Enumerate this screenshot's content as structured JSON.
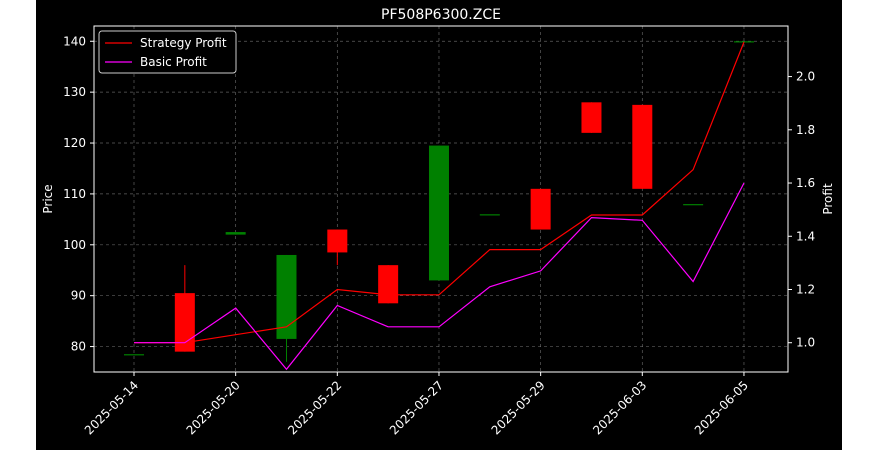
{
  "chart_data": {
    "type": "candlestick",
    "title": "PF508P6300.ZCE",
    "ylabel_left": "Price",
    "ylabel_right": "Profit",
    "xlabel": "",
    "ylim_left": [
      75,
      143
    ],
    "ylim_right": [
      0.89,
      2.19
    ],
    "yticks_left": [
      80,
      90,
      100,
      110,
      120,
      130,
      140
    ],
    "yticks_right": [
      "1.0",
      "1.2",
      "1.4",
      "1.6",
      "1.8",
      "2.0"
    ],
    "xtick_labels": [
      {
        "index": 0,
        "label": "2025-05-14"
      },
      {
        "index": 2,
        "label": "2025-05-20"
      },
      {
        "index": 4,
        "label": "2025-05-22"
      },
      {
        "index": 6,
        "label": "2025-05-27"
      },
      {
        "index": 8,
        "label": "2025-05-29"
      },
      {
        "index": 10,
        "label": "2025-06-03"
      },
      {
        "index": 12,
        "label": "2025-06-05"
      }
    ],
    "grid": true,
    "legend_position": "upper-left",
    "colors": {
      "up": "#008000",
      "down": "#ff0000",
      "strategy": "#ff0000",
      "basic": "#ff00ff",
      "grid": "#888888"
    },
    "candles": [
      {
        "open": 78.5,
        "high": 78.5,
        "low": 78.5,
        "close": 78.5
      },
      {
        "open": 90.5,
        "high": 96.0,
        "low": 79.0,
        "close": 79.0
      },
      {
        "open": 102.0,
        "high": 102.5,
        "low": 102.0,
        "close": 102.5
      },
      {
        "open": 81.5,
        "high": 98.0,
        "low": 77.0,
        "close": 98.0
      },
      {
        "open": 103.0,
        "high": 103.0,
        "low": 96.0,
        "close": 98.5
      },
      {
        "open": 96.0,
        "high": 96.0,
        "low": 88.5,
        "close": 88.5
      },
      {
        "open": 93.0,
        "high": 119.5,
        "low": 93.0,
        "close": 119.5
      },
      {
        "open": 106.0,
        "high": 106.0,
        "low": 106.0,
        "close": 106.0
      },
      {
        "open": 111.0,
        "high": 111.0,
        "low": 103.0,
        "close": 103.0
      },
      {
        "open": 128.0,
        "high": 128.0,
        "low": 122.0,
        "close": 122.0
      },
      {
        "open": 127.5,
        "high": 127.5,
        "low": 111.0,
        "close": 111.0
      },
      {
        "open": 108.0,
        "high": 108.0,
        "low": 108.0,
        "close": 108.0
      },
      {
        "open": 140.0,
        "high": 140.0,
        "low": 140.0,
        "close": 140.0
      }
    ],
    "series": [
      {
        "name": "Strategy Profit",
        "color": "#ff0000",
        "values": [
          1.0,
          1.0,
          1.03,
          1.06,
          1.2,
          1.18,
          1.18,
          1.35,
          1.35,
          1.48,
          1.48,
          1.65,
          2.13
        ]
      },
      {
        "name": "Basic Profit",
        "color": "#ff00ff",
        "values": [
          1.0,
          1.0,
          1.13,
          0.9,
          1.14,
          1.06,
          1.06,
          1.21,
          1.27,
          1.47,
          1.46,
          1.23,
          1.6
        ]
      }
    ]
  }
}
